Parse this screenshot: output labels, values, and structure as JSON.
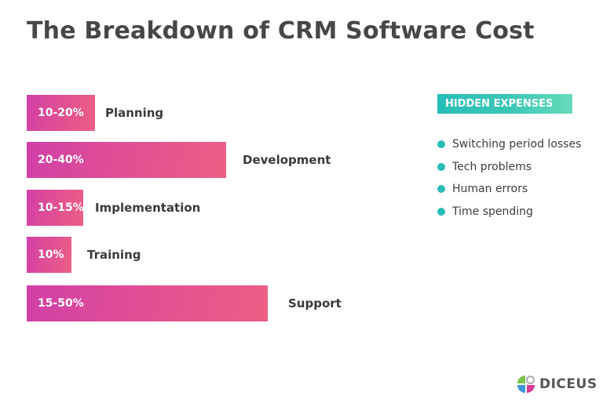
{
  "chart_data": {
    "type": "bar",
    "orientation": "horizontal",
    "title": "The Breakdown of CRM Software Cost",
    "categories": [
      "Planning",
      "Development",
      "Implementation",
      "Training",
      "Support"
    ],
    "value_labels": [
      "10-20%",
      "20-40%",
      "10-15%",
      "10%",
      "15-50%"
    ],
    "ranges": [
      [
        10,
        20
      ],
      [
        20,
        40
      ],
      [
        10,
        15
      ],
      [
        10,
        10
      ],
      [
        15,
        50
      ]
    ],
    "bar_color_gradient": [
      "#d13fa8",
      "#ec5f84"
    ]
  },
  "sidebar": {
    "heading": "HIDDEN EXPENSES",
    "accent": "#27bdb8",
    "items": [
      "Switching period losses",
      "Tech problems",
      "Human errors",
      "Time spending"
    ]
  },
  "logo": {
    "text": "DICEUS"
  }
}
